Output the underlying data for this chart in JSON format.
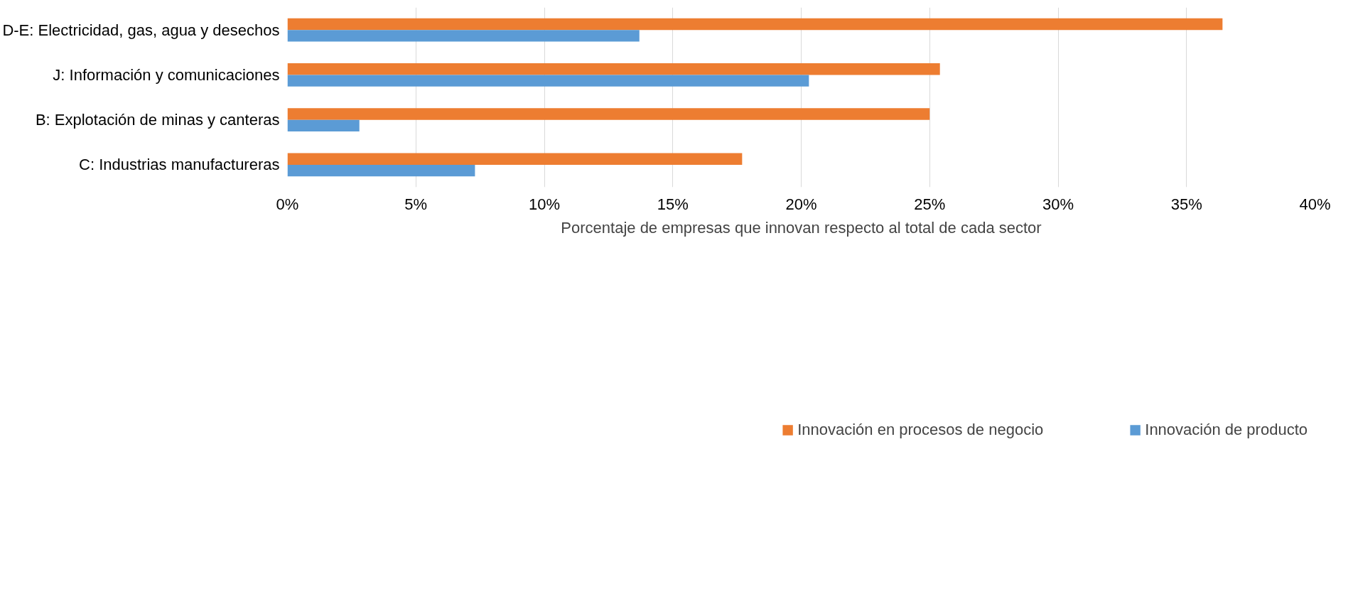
{
  "chart_data": {
    "type": "bar",
    "orientation": "horizontal",
    "xlabel": "Porcentaje de empresas que innovan respecto al total de cada sector",
    "categories": [
      "D-E: Electricidad, gas, agua y desechos",
      "J: Información y comunicaciones",
      "B: Explotación de minas y canteras",
      "C: Industrias manufactureras"
    ],
    "series": [
      {
        "name": "Innovación en procesos de negocio",
        "color": "#ed7d31",
        "values": [
          36.4,
          25.4,
          25.0,
          17.7
        ]
      },
      {
        "name": "Innovación de producto",
        "color": "#5b9bd5",
        "values": [
          13.7,
          20.3,
          2.8,
          7.3
        ]
      }
    ],
    "xlim": [
      0,
      40
    ],
    "xticks": [
      {
        "value": 0,
        "label": "0%"
      },
      {
        "value": 5,
        "label": "5%"
      },
      {
        "value": 10,
        "label": "10%"
      },
      {
        "value": 15,
        "label": "15%"
      },
      {
        "value": 20,
        "label": "20%"
      },
      {
        "value": 25,
        "label": "25%"
      },
      {
        "value": 30,
        "label": "30%"
      },
      {
        "value": 35,
        "label": "35%"
      },
      {
        "value": 40,
        "label": "40%"
      }
    ],
    "grid": "x",
    "legend": "bottom"
  }
}
